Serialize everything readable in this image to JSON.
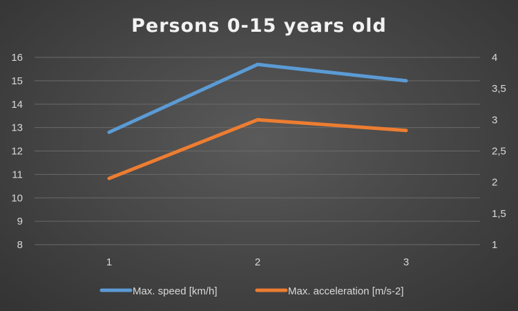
{
  "chart_data": {
    "type": "line",
    "title": "Persons 0-15 years old",
    "categories": [
      "1",
      "2",
      "3"
    ],
    "y_left": {
      "min": 8,
      "max": 16,
      "step": 1,
      "ticks": [
        "8",
        "9",
        "10",
        "11",
        "12",
        "13",
        "14",
        "15",
        "16"
      ]
    },
    "y_right": {
      "min": 1,
      "max": 4,
      "step": 0.5,
      "ticks": [
        "1",
        "1,5",
        "2",
        "2,5",
        "3",
        "3,5",
        "4"
      ]
    },
    "series": [
      {
        "name": "Max. speed [km/h]",
        "axis": "left",
        "color": "#5b9bd5",
        "values": [
          12.8,
          15.7,
          15.0
        ]
      },
      {
        "name": "Max. acceleration [m/s-2]",
        "axis": "right",
        "color": "#ed7d31",
        "values": [
          2.06,
          3.0,
          2.83
        ]
      }
    ],
    "grid": true,
    "legend_position": "bottom"
  }
}
